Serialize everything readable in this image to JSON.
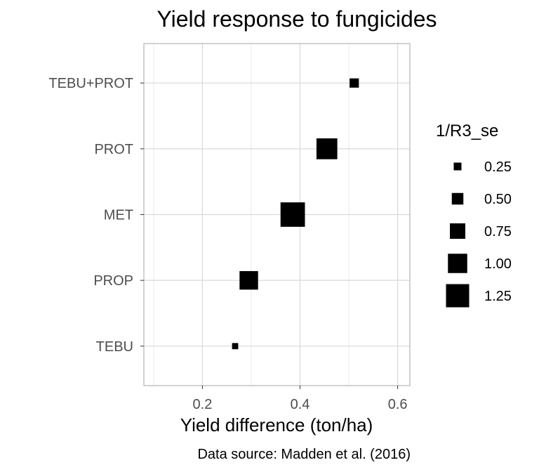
{
  "chart_data": {
    "type": "scatter",
    "title": "Yield response to fungicides",
    "xlabel": "Yield difference (ton/ha)",
    "ylabel": "",
    "caption": "Data source: Madden et al. (2016)",
    "xlim": [
      0.08,
      0.625
    ],
    "x_ticks": [
      0.2,
      0.4,
      0.6
    ],
    "x_tick_labels": [
      "0.2",
      "0.4",
      "0.6"
    ],
    "categories": [
      "TEBU",
      "PROP",
      "MET",
      "PROT",
      "TEBU+PROT"
    ],
    "points": [
      {
        "category": "TEBU",
        "x": 0.267,
        "size": 0.15
      },
      {
        "category": "PROP",
        "x": 0.295,
        "size": 0.95
      },
      {
        "category": "MET",
        "x": 0.385,
        "size": 1.33
      },
      {
        "category": "PROT",
        "x": 0.455,
        "size": 1.1
      },
      {
        "category": "TEBU+PROT",
        "x": 0.511,
        "size": 0.35
      }
    ],
    "grid": true,
    "marker_color": "#000000",
    "legend": {
      "title": "1/R3_se",
      "position": "right",
      "entries": [
        {
          "label": "0.25",
          "size": 0.25
        },
        {
          "label": "0.50",
          "size": 0.5
        },
        {
          "label": "0.75",
          "size": 0.75
        },
        {
          "label": "1.00",
          "size": 1.0
        },
        {
          "label": "1.25",
          "size": 1.25
        }
      ]
    }
  }
}
